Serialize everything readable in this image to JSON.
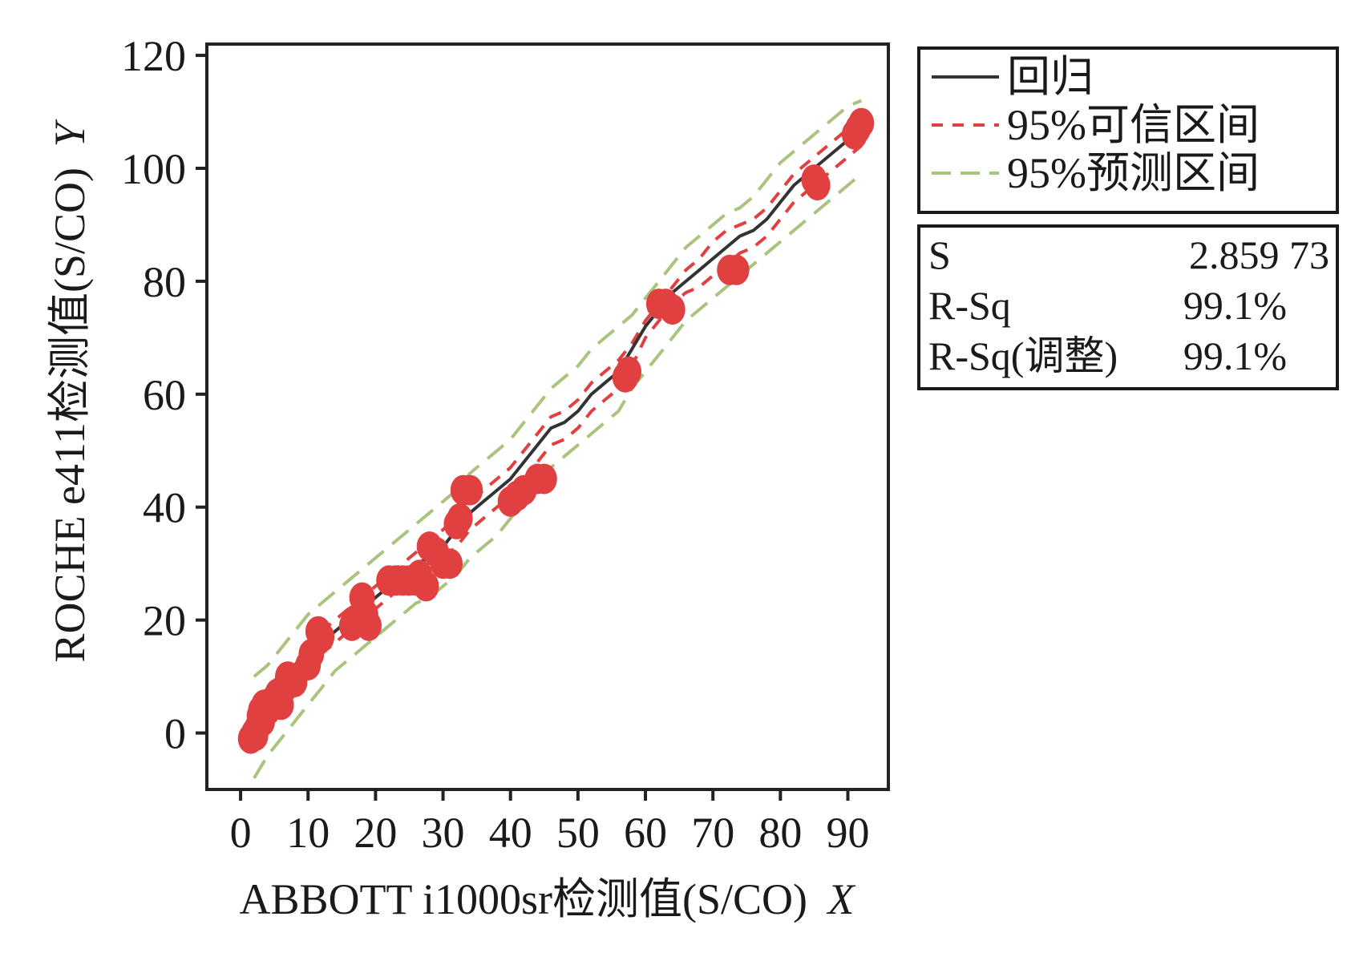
{
  "chart_data": {
    "type": "scatter",
    "xlabel": "ABBOTT i1000sr检测值(S/CO)",
    "xlabel_var": "X",
    "ylabel": "ROCHE e411检测值(S/CO)",
    "ylabel_var": "Y",
    "xlim": [
      -5,
      96
    ],
    "ylim": [
      -10,
      122
    ],
    "xticks": [
      0,
      10,
      20,
      30,
      40,
      50,
      60,
      70,
      80,
      90
    ],
    "yticks": [
      0,
      20,
      40,
      60,
      80,
      100,
      120
    ],
    "grid": false,
    "legend": {
      "placement": "outside-right-top",
      "entries": [
        {
          "label": "回归",
          "style": "solid",
          "color": "#333333"
        },
        {
          "label": "95%可信区间",
          "style": "dashed",
          "color": "#e04040"
        },
        {
          "label": "95%预测区间",
          "style": "dashed",
          "color": "#a9c47f"
        }
      ]
    },
    "stats": {
      "rows": [
        {
          "label": "S",
          "value": "2.859 73"
        },
        {
          "label": "R-Sq",
          "value": "99.1%"
        },
        {
          "label": "R-Sq(调整)",
          "value": "99.1%"
        }
      ]
    },
    "colors": {
      "points": "#e04040",
      "regression": "#333333",
      "confidence": "#e04040",
      "prediction": "#a9c47f",
      "frame": "#222222"
    },
    "series": [
      {
        "name": "回归",
        "kind": "line",
        "x": [
          2,
          4,
          6,
          8,
          10,
          12,
          14,
          16,
          18,
          20,
          22,
          24,
          26,
          28,
          30,
          32,
          34,
          36,
          38,
          40,
          42,
          44,
          46,
          48,
          50,
          52,
          54,
          56,
          58,
          60,
          62,
          64,
          66,
          68,
          70,
          72,
          74,
          76,
          78,
          80,
          82,
          84,
          86,
          88,
          90,
          92
        ],
        "y": [
          0,
          4,
          7,
          10,
          13,
          16,
          18,
          20,
          22,
          24,
          26,
          28,
          30,
          31,
          33,
          36,
          39,
          41,
          43,
          45,
          48,
          51,
          54,
          55,
          57,
          60,
          62,
          64,
          68,
          72,
          75,
          78,
          80,
          82,
          84,
          86,
          88,
          89,
          91,
          94,
          97,
          99,
          101,
          103,
          105,
          107
        ]
      },
      {
        "name": "95%可信区间",
        "kind": "band",
        "x": [
          2,
          4,
          6,
          8,
          10,
          12,
          14,
          16,
          18,
          20,
          22,
          24,
          26,
          28,
          30,
          32,
          34,
          36,
          38,
          40,
          42,
          44,
          46,
          48,
          50,
          52,
          54,
          56,
          58,
          60,
          62,
          64,
          66,
          68,
          70,
          72,
          74,
          76,
          78,
          80,
          82,
          84,
          86,
          88,
          90,
          92
        ],
        "upper": [
          2,
          6,
          9,
          12,
          15,
          18,
          20,
          22,
          24,
          26,
          28,
          30,
          32,
          34,
          36,
          38,
          41,
          43,
          45,
          47,
          50,
          53,
          56,
          57,
          59,
          62,
          64,
          66,
          69,
          73,
          76,
          79,
          82,
          84,
          87,
          89,
          90,
          91,
          93,
          96,
          99,
          101,
          103,
          105,
          107,
          109
        ],
        "lower": [
          -2,
          2,
          5,
          8,
          11,
          14,
          16,
          18,
          20,
          22,
          24,
          26,
          28,
          29,
          31,
          33,
          36,
          38,
          40,
          42,
          45,
          48,
          51,
          52,
          54,
          57,
          59,
          61,
          65,
          70,
          73,
          76,
          78,
          79,
          81,
          83,
          85,
          86,
          88,
          91,
          94,
          96,
          98,
          100,
          102,
          104
        ]
      },
      {
        "name": "95%预测区间",
        "kind": "band",
        "x": [
          2,
          4,
          6,
          8,
          10,
          12,
          14,
          16,
          18,
          20,
          22,
          24,
          26,
          28,
          30,
          32,
          34,
          36,
          38,
          40,
          42,
          44,
          46,
          48,
          50,
          52,
          54,
          56,
          58,
          60,
          62,
          64,
          66,
          68,
          70,
          72,
          74,
          76,
          78,
          80,
          82,
          84,
          86,
          88,
          90,
          92
        ],
        "upper": [
          10,
          12,
          15,
          18,
          21,
          23,
          25,
          27,
          29,
          31,
          33,
          35,
          37,
          39,
          41,
          43,
          46,
          48,
          50,
          52,
          55,
          58,
          61,
          63,
          65,
          68,
          70,
          72,
          74,
          77,
          80,
          83,
          86,
          88,
          90,
          92,
          93,
          95,
          98,
          101,
          103,
          105,
          107,
          109,
          111,
          112
        ],
        "lower": [
          -8,
          -4,
          -1,
          2,
          5,
          8,
          11,
          13,
          15,
          17,
          19,
          21,
          23,
          24,
          26,
          28,
          31,
          33,
          35,
          38,
          41,
          44,
          47,
          49,
          51,
          53,
          55,
          57,
          61,
          64,
          67,
          70,
          73,
          75,
          77,
          79,
          81,
          83,
          85,
          87,
          89,
          91,
          93,
          95,
          97,
          99
        ]
      },
      {
        "name": "",
        "kind": "points",
        "points": [
          [
            1.5,
            -1
          ],
          [
            2,
            0
          ],
          [
            2.2,
            -0.5
          ],
          [
            2.5,
            1
          ],
          [
            2.8,
            3
          ],
          [
            3,
            4
          ],
          [
            3.2,
            2
          ],
          [
            3.5,
            5
          ],
          [
            4,
            4
          ],
          [
            5,
            6
          ],
          [
            5.5,
            7
          ],
          [
            6,
            5
          ],
          [
            6.5,
            8
          ],
          [
            7,
            10
          ],
          [
            7.5,
            9
          ],
          [
            8,
            9
          ],
          [
            10,
            12
          ],
          [
            10.5,
            14
          ],
          [
            11.5,
            18
          ],
          [
            12,
            17
          ],
          [
            16.5,
            19
          ],
          [
            17,
            20
          ],
          [
            18,
            24
          ],
          [
            18.5,
            21
          ],
          [
            19,
            19
          ],
          [
            22,
            27
          ],
          [
            23,
            27
          ],
          [
            24,
            27
          ],
          [
            25,
            27
          ],
          [
            26,
            27
          ],
          [
            26.5,
            28
          ],
          [
            27.5,
            26
          ],
          [
            28,
            33
          ],
          [
            29,
            32
          ],
          [
            30,
            30
          ],
          [
            31,
            30
          ],
          [
            32,
            37
          ],
          [
            32.5,
            38
          ],
          [
            33,
            43
          ],
          [
            34,
            43
          ],
          [
            40,
            41
          ],
          [
            41,
            42
          ],
          [
            42,
            43
          ],
          [
            44,
            45
          ],
          [
            45,
            45
          ],
          [
            57,
            63
          ],
          [
            57.5,
            64
          ],
          [
            62,
            76
          ],
          [
            63,
            76
          ],
          [
            64,
            75
          ],
          [
            72.5,
            82
          ],
          [
            73.5,
            82
          ],
          [
            85,
            98
          ],
          [
            85.5,
            97
          ],
          [
            91,
            106
          ],
          [
            91.5,
            107
          ],
          [
            92,
            108
          ]
        ]
      }
    ]
  }
}
